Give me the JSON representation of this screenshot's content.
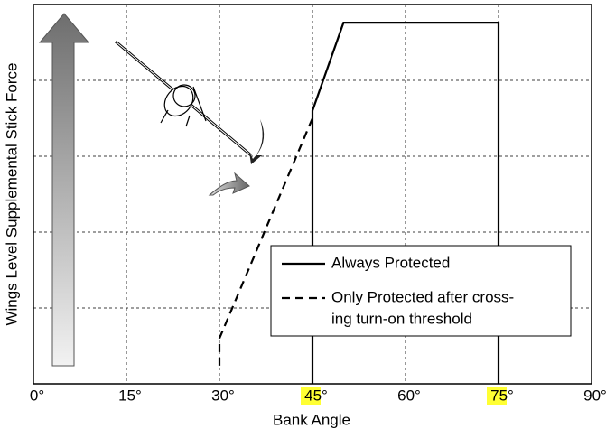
{
  "chart_data": {
    "type": "line",
    "x_label": "Bank Angle",
    "y_label": "Wings Level Supplemental Stick Force",
    "xlim": [
      0,
      90
    ],
    "ylim": [
      0,
      5
    ],
    "xticks": [
      {
        "value": 0,
        "label": "0°"
      },
      {
        "value": 15,
        "label": "15°"
      },
      {
        "value": 30,
        "label": "30°"
      },
      {
        "value": 45,
        "label": "45°"
      },
      {
        "value": 60,
        "label": "60°"
      },
      {
        "value": 75,
        "label": "75°"
      },
      {
        "value": 90,
        "label": "90°"
      }
    ],
    "yticks": [
      0,
      1,
      2,
      3,
      4,
      5
    ],
    "grid": true,
    "highlight": {
      "color": "#ffff33",
      "xticks": [
        45,
        75
      ]
    },
    "series": [
      {
        "name": "Always Protected",
        "color": "#000000",
        "dash": "solid",
        "x": [
          45,
          45,
          50,
          75,
          75
        ],
        "values": [
          0,
          3.6,
          4.76,
          4.76,
          0
        ]
      },
      {
        "name": "Only Protected after cross-ing turn-on threshold",
        "name_lines": [
          "Only Protected after cross-",
          "ing turn-on threshold"
        ],
        "color": "#000000",
        "dash": "dashed",
        "x": [
          30,
          30,
          45
        ],
        "values": [
          0.24,
          0.6,
          3.5
        ]
      }
    ]
  }
}
